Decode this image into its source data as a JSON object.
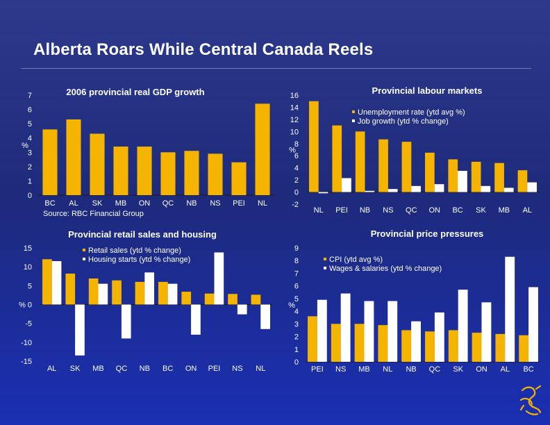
{
  "page": {
    "title": "Alberta Roars While Central Canada Reels"
  },
  "colors": {
    "background": "#1e2a8c",
    "series_yellow": "#f5b400",
    "series_white": "#ffffff",
    "text": "#ffffff"
  },
  "chart_data": [
    {
      "id": "gdp",
      "type": "bar",
      "title": "2006 provincial real GDP growth",
      "source": "Source: RBC Financial Group",
      "ylabel": "%",
      "xlabel": "",
      "ylim": [
        0,
        7
      ],
      "yticks": [
        0,
        1,
        2,
        3,
        4,
        5,
        6,
        7
      ],
      "categories": [
        "BC",
        "AL",
        "SK",
        "MB",
        "ON",
        "QC",
        "NB",
        "NS",
        "PEI",
        "NL"
      ],
      "series": [
        {
          "name": "Real GDP growth",
          "color": "#f5b400",
          "values": [
            4.6,
            5.3,
            4.3,
            3.4,
            3.4,
            3.0,
            3.1,
            2.9,
            2.3,
            6.4
          ]
        }
      ]
    },
    {
      "id": "labour",
      "type": "bar",
      "title": "Provincial labour markets",
      "ylabel": "%",
      "xlabel": "",
      "ylim": [
        -2,
        16
      ],
      "yticks": [
        -2,
        0,
        2,
        4,
        6,
        8,
        10,
        12,
        14,
        16
      ],
      "categories": [
        "NL",
        "PEI",
        "NB",
        "NS",
        "QC",
        "ON",
        "BC",
        "SK",
        "MB",
        "AL"
      ],
      "legend": [
        "Unemployment rate (ytd avg %)",
        "Job growth (ytd % change)"
      ],
      "series": [
        {
          "name": "Unemployment rate (ytd avg %)",
          "color": "#f5b400",
          "values": [
            15.0,
            11.0,
            10.0,
            8.7,
            8.3,
            6.5,
            5.4,
            5.0,
            4.8,
            3.6
          ]
        },
        {
          "name": "Job growth (ytd % change)",
          "color": "#ffffff",
          "values": [
            -0.2,
            2.3,
            0.2,
            0.5,
            1.0,
            1.3,
            3.5,
            1.0,
            0.7,
            1.6
          ]
        }
      ]
    },
    {
      "id": "retail",
      "type": "bar",
      "title": "Provincial retail sales and housing",
      "ylabel": "%",
      "xlabel": "",
      "ylim": [
        -15,
        15
      ],
      "yticks": [
        -15,
        -10,
        -5,
        0,
        5,
        10,
        15
      ],
      "categories": [
        "AL",
        "SK",
        "MB",
        "QC",
        "NB",
        "BC",
        "ON",
        "PEI",
        "NS",
        "NL"
      ],
      "legend": [
        "Retail sales (ytd % change)",
        "Housing starts (ytd % change)"
      ],
      "series": [
        {
          "name": "Retail sales (ytd % change)",
          "color": "#f5b400",
          "values": [
            12.0,
            8.2,
            6.9,
            6.4,
            6.0,
            6.0,
            3.4,
            2.9,
            2.8,
            2.6
          ]
        },
        {
          "name": "Housing starts (ytd % change)",
          "color": "#ffffff",
          "values": [
            11.5,
            -13.5,
            5.5,
            -9.0,
            8.5,
            5.5,
            -8.0,
            13.8,
            -2.6,
            -6.5
          ]
        }
      ]
    },
    {
      "id": "prices",
      "type": "bar",
      "title": "Provincial price pressures",
      "ylabel": "%",
      "xlabel": "",
      "ylim": [
        0,
        9
      ],
      "yticks": [
        0,
        1,
        2,
        3,
        4,
        5,
        6,
        7,
        8,
        9
      ],
      "categories": [
        "PEI",
        "NS",
        "MB",
        "NL",
        "NB",
        "QC",
        "SK",
        "ON",
        "AL",
        "BC"
      ],
      "legend": [
        "CPI (ytd avg %)",
        "Wages & salaries (ytd % change)"
      ],
      "series": [
        {
          "name": "CPI (ytd avg %)",
          "color": "#f5b400",
          "values": [
            3.6,
            3.0,
            3.0,
            2.9,
            2.5,
            2.4,
            2.5,
            2.3,
            2.2,
            2.1
          ]
        },
        {
          "name": "Wages & salaries (ytd % change)",
          "color": "#ffffff",
          "values": [
            4.9,
            5.4,
            4.8,
            4.8,
            3.2,
            3.9,
            5.7,
            4.7,
            8.3,
            5.9
          ]
        }
      ]
    }
  ]
}
